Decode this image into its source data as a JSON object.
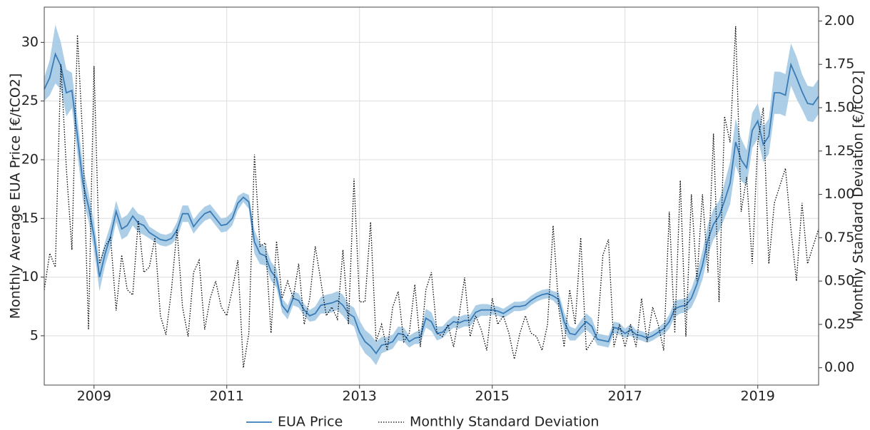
{
  "chart_data": {
    "type": "line",
    "ylabel": "Monthly Average EUA Price [€/tCO2]",
    "y2label": "Monthly Standard Deviation [€/tCO2]",
    "xlim": [
      2008.25,
      2019.917
    ],
    "xticks": [
      2009,
      2011,
      2013,
      2015,
      2017,
      2019
    ],
    "ylim": [
      0.8,
      33
    ],
    "yticks": [
      5,
      10,
      15,
      20,
      25,
      30
    ],
    "y2lim": [
      -0.1,
      2.08
    ],
    "y2ticks": [
      {
        "value": 0,
        "label": "0.00"
      },
      {
        "value": 0.25,
        "label": "0.25"
      },
      {
        "value": 0.5,
        "label": "0.50"
      },
      {
        "value": 0.75,
        "label": "0.75"
      },
      {
        "value": 1,
        "label": "1.00"
      },
      {
        "value": 1.25,
        "label": "1.25"
      },
      {
        "value": 1.5,
        "label": "1.50"
      },
      {
        "value": 1.75,
        "label": "1.75"
      },
      {
        "value": 2,
        "label": "2.00"
      }
    ],
    "grid": true,
    "legend": "bottom",
    "x": [
      2008.25,
      2008.333,
      2008.417,
      2008.5,
      2008.583,
      2008.667,
      2008.75,
      2008.833,
      2008.917,
      2009,
      2009.083,
      2009.167,
      2009.25,
      2009.333,
      2009.417,
      2009.5,
      2009.583,
      2009.667,
      2009.75,
      2009.833,
      2009.917,
      2010,
      2010.083,
      2010.167,
      2010.25,
      2010.333,
      2010.417,
      2010.5,
      2010.583,
      2010.667,
      2010.75,
      2010.833,
      2010.917,
      2011,
      2011.083,
      2011.167,
      2011.25,
      2011.333,
      2011.417,
      2011.5,
      2011.583,
      2011.667,
      2011.75,
      2011.833,
      2011.917,
      2012,
      2012.083,
      2012.167,
      2012.25,
      2012.333,
      2012.417,
      2012.5,
      2012.583,
      2012.667,
      2012.75,
      2012.833,
      2012.917,
      2013,
      2013.083,
      2013.167,
      2013.25,
      2013.333,
      2013.417,
      2013.5,
      2013.583,
      2013.667,
      2013.75,
      2013.833,
      2013.917,
      2014,
      2014.083,
      2014.167,
      2014.25,
      2014.333,
      2014.417,
      2014.5,
      2014.583,
      2014.667,
      2014.75,
      2014.833,
      2014.917,
      2015,
      2015.083,
      2015.167,
      2015.25,
      2015.333,
      2015.417,
      2015.5,
      2015.583,
      2015.667,
      2015.75,
      2015.833,
      2015.917,
      2016,
      2016.083,
      2016.167,
      2016.25,
      2016.333,
      2016.417,
      2016.5,
      2016.583,
      2016.667,
      2016.75,
      2016.833,
      2016.917,
      2017,
      2017.083,
      2017.167,
      2017.25,
      2017.333,
      2017.417,
      2017.5,
      2017.583,
      2017.667,
      2017.75,
      2017.833,
      2017.917,
      2018,
      2018.083,
      2018.167,
      2018.25,
      2018.333,
      2018.417,
      2018.5,
      2018.583,
      2018.667,
      2018.75,
      2018.833,
      2018.917,
      2019,
      2019.083,
      2019.167,
      2019.25,
      2019.333,
      2019.417,
      2019.5,
      2019.583,
      2019.667,
      2019.75,
      2019.833,
      2019.917
    ],
    "series": [
      {
        "name": "EUA Price",
        "color": "#3a7cb8",
        "band_color": "#9fc5e3",
        "values": [
          26,
          27,
          29,
          28,
          25.7,
          25.9,
          22,
          18,
          16,
          13.5,
          10,
          12,
          13.5,
          15.6,
          14.1,
          14.4,
          15.2,
          14.6,
          14.4,
          13.8,
          13.5,
          13.2,
          13.1,
          13.3,
          14,
          15.4,
          15.4,
          14.3,
          14.9,
          15.4,
          15.6,
          15,
          14.4,
          14.5,
          15,
          16.3,
          16.8,
          16.4,
          13,
          12,
          11.8,
          10.5,
          9.9,
          7.6,
          7,
          8.2,
          8,
          7.2,
          6.7,
          6.9,
          7.6,
          7.7,
          7.8,
          8,
          7.6,
          6.9,
          6.6,
          5.3,
          4.5,
          4.1,
          3.5,
          4.2,
          4.3,
          4.5,
          5.2,
          5.1,
          4.5,
          4.8,
          4.9,
          6.5,
          6.2,
          5.2,
          5.3,
          5.8,
          6.2,
          6.1,
          6.3,
          6.3,
          7,
          7.2,
          7.2,
          7.2,
          7.1,
          6.9,
          7.2,
          7.5,
          7.5,
          7.6,
          8,
          8.3,
          8.5,
          8.6,
          8.4,
          8.1,
          6.2,
          5.2,
          5.1,
          5.7,
          6.2,
          5.8,
          4.7,
          4.6,
          4.5,
          5.7,
          5.6,
          5.2,
          5.5,
          5.1,
          5,
          4.8,
          5,
          5.3,
          5.6,
          6.2,
          7.3,
          7.5,
          7.6,
          8.2,
          9.4,
          11,
          13.2,
          14.5,
          15.2,
          16.5,
          18,
          21.5,
          20,
          19.3,
          22.5,
          23.3,
          21.3,
          22,
          25.7,
          25.7,
          25.5,
          28.1,
          27,
          25.8,
          24.8,
          24.7,
          25.4
        ],
        "band": [
          1,
          1.5,
          2.5,
          2,
          2,
          1.5,
          1.5,
          1.5,
          1.2,
          1.2,
          1.2,
          1,
          1,
          0.9,
          0.9,
          0.9,
          0.8,
          0.8,
          0.8,
          0.5,
          0.5,
          0.5,
          0.5,
          0.5,
          0.7,
          0.7,
          0.7,
          0.6,
          0.6,
          0.6,
          0.6,
          0.6,
          0.6,
          0.6,
          0.6,
          0.6,
          0.4,
          0.6,
          1,
          0.9,
          0.8,
          0.8,
          0.8,
          0.6,
          0.6,
          0.6,
          0.6,
          0.5,
          0.5,
          0.6,
          0.7,
          0.8,
          0.8,
          0.8,
          0.9,
          0.8,
          0.8,
          1,
          1,
          1,
          1,
          0.7,
          0.6,
          0.6,
          0.6,
          0.6,
          0.5,
          0.5,
          0.6,
          0.8,
          0.8,
          0.6,
          0.5,
          0.5,
          0.5,
          0.5,
          0.5,
          0.5,
          0.6,
          0.5,
          0.5,
          0.4,
          0.4,
          0.4,
          0.4,
          0.4,
          0.4,
          0.4,
          0.4,
          0.4,
          0.4,
          0.4,
          0.4,
          0.6,
          0.8,
          0.6,
          0.5,
          0.6,
          0.7,
          0.7,
          0.5,
          0.5,
          0.5,
          0.5,
          0.5,
          0.4,
          0.5,
          0.4,
          0.4,
          0.4,
          0.4,
          0.4,
          0.5,
          0.6,
          0.7,
          0.6,
          0.6,
          0.8,
          1,
          1.2,
          1.3,
          1.3,
          1.3,
          1.5,
          1.8,
          2,
          1.8,
          1.5,
          1.5,
          1.5,
          1.5,
          1.5,
          1.8,
          1.8,
          1.8,
          1.8,
          1.8,
          1.5,
          1.5,
          1.5,
          1.5
        ]
      },
      {
        "name": "Monthly Standard Deviation",
        "color": "#000000",
        "axis": "y2",
        "dash": "dotted",
        "values": [
          0.45,
          0.66,
          0.58,
          1.75,
          1.15,
          0.68,
          1.92,
          1.3,
          0.22,
          1.74,
          0.6,
          0.7,
          0.75,
          0.33,
          0.65,
          0.45,
          0.42,
          0.85,
          0.55,
          0.58,
          0.75,
          0.3,
          0.19,
          0.45,
          0.8,
          0.35,
          0.18,
          0.55,
          0.62,
          0.22,
          0.4,
          0.5,
          0.35,
          0.3,
          0.45,
          0.62,
          0,
          0.2,
          1.23,
          0.7,
          0.72,
          0.2,
          0.73,
          0.4,
          0.5,
          0.4,
          0.6,
          0.25,
          0.4,
          0.7,
          0.5,
          0.3,
          0.35,
          0.28,
          0.68,
          0.25,
          1.09,
          0.38,
          0.38,
          0.84,
          0.15,
          0.25,
          0.1,
          0.35,
          0.44,
          0.15,
          0.2,
          0.48,
          0.12,
          0.45,
          0.55,
          0.2,
          0.18,
          0.25,
          0.12,
          0.3,
          0.52,
          0.18,
          0.3,
          0.22,
          0.1,
          0.4,
          0.25,
          0.3,
          0.2,
          0.05,
          0.2,
          0.3,
          0.2,
          0.18,
          0.1,
          0.25,
          0.82,
          0.35,
          0.12,
          0.45,
          0.25,
          0.75,
          0.1,
          0.15,
          0.2,
          0.65,
          0.74,
          0.12,
          0.25,
          0.12,
          0.25,
          0.12,
          0.4,
          0.15,
          0.35,
          0.25,
          0.1,
          0.9,
          0.2,
          1.08,
          0.18,
          1,
          0.5,
          1,
          0.55,
          1.35,
          0.38,
          1.45,
          1.3,
          1.97,
          0.9,
          1.1,
          0.6,
          1.3,
          1.5,
          0.6,
          0.95,
          1.05,
          1.15,
          0.8,
          0.5,
          0.95,
          0.6,
          0.7,
          0.8
        ]
      }
    ]
  }
}
